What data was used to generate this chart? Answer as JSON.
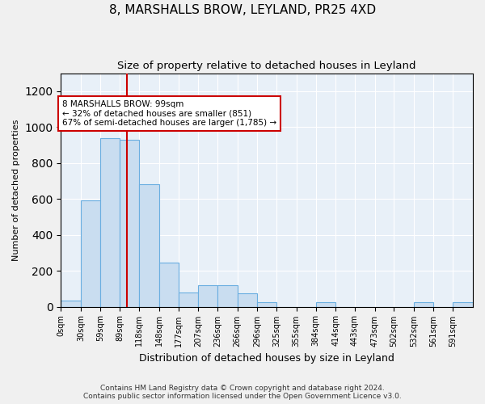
{
  "title": "8, MARSHALLS BROW, LEYLAND, PR25 4XD",
  "subtitle": "Size of property relative to detached houses in Leyland",
  "xlabel": "Distribution of detached houses by size in Leyland",
  "ylabel": "Number of detached properties",
  "bar_color": "#c9ddf0",
  "bar_edge_color": "#6aaee0",
  "bg_color": "#e8f0f8",
  "grid_color": "#ffffff",
  "fig_bg_color": "#f0f0f0",
  "annotation_box_color": "#cc0000",
  "annotation_line_color": "#cc0000",
  "property_line_x": 99,
  "categories": [
    "0sqm",
    "30sqm",
    "59sqm",
    "89sqm",
    "118sqm",
    "148sqm",
    "177sqm",
    "207sqm",
    "236sqm",
    "266sqm",
    "296sqm",
    "325sqm",
    "355sqm",
    "384sqm",
    "414sqm",
    "443sqm",
    "473sqm",
    "502sqm",
    "532sqm",
    "561sqm",
    "591sqm"
  ],
  "bin_edges": [
    0,
    30,
    59,
    89,
    118,
    148,
    177,
    207,
    236,
    266,
    296,
    325,
    355,
    384,
    414,
    443,
    473,
    502,
    532,
    561,
    591,
    621
  ],
  "values": [
    35,
    590,
    940,
    930,
    680,
    245,
    80,
    120,
    120,
    75,
    25,
    0,
    0,
    25,
    0,
    0,
    0,
    0,
    25,
    0,
    25
  ],
  "ylim": [
    0,
    1300
  ],
  "yticks": [
    0,
    200,
    400,
    600,
    800,
    1000,
    1200
  ],
  "annotation_text": "8 MARSHALLS BROW: 99sqm\n← 32% of detached houses are smaller (851)\n67% of semi-detached houses are larger (1,785) →",
  "footer": "Contains HM Land Registry data © Crown copyright and database right 2024.\nContains public sector information licensed under the Open Government Licence v3.0."
}
